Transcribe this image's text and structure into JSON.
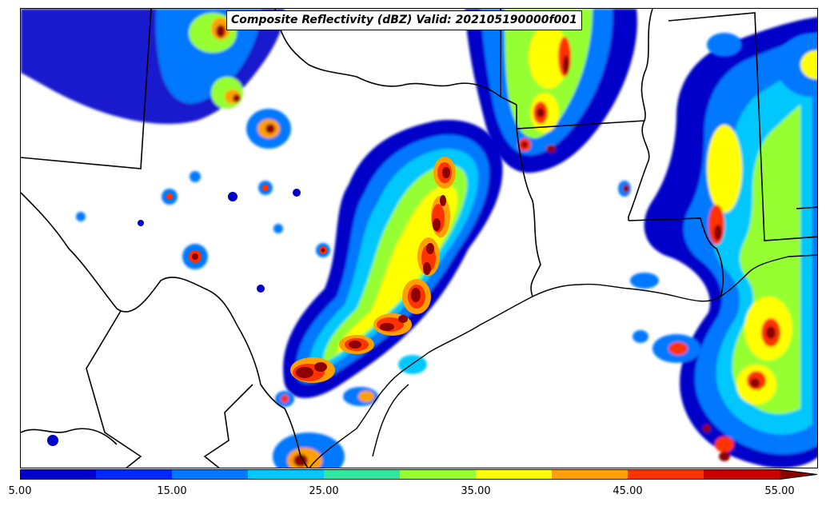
{
  "title": "Composite Reflectivity (dBZ) Valid: 202105190000f001",
  "colorbar": {
    "ticks": [
      "5.00",
      "15.00",
      "25.00",
      "35.00",
      "45.00",
      "55.00"
    ],
    "colors": [
      "#0000c8",
      "#0028ff",
      "#0078ff",
      "#00c8ff",
      "#32e6a0",
      "#96ff32",
      "#ffff00",
      "#ffa000",
      "#ff3200",
      "#c80000",
      "#8c0000"
    ],
    "extend": "max"
  },
  "colors": {
    "border": "#000000",
    "background": "#ffffff"
  }
}
